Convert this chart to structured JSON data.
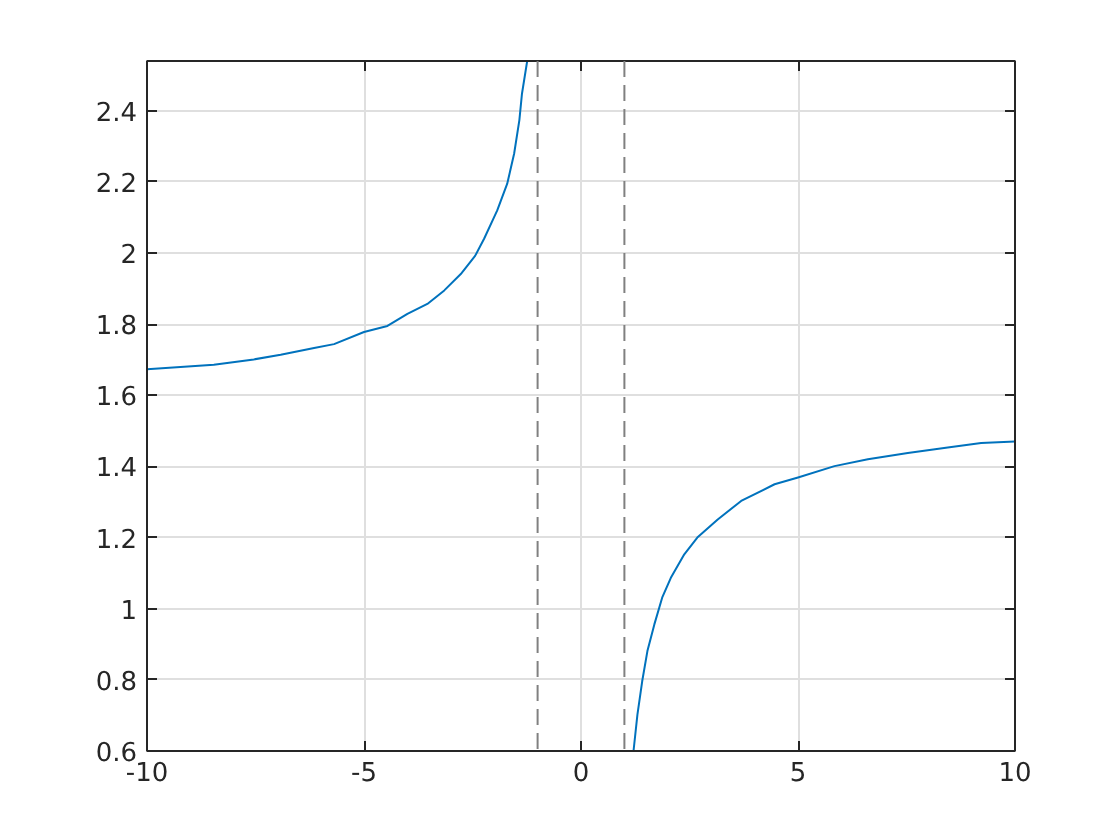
{
  "chart_data": {
    "type": "line",
    "series": [
      {
        "color": "#0072bd",
        "x": [
          -10,
          -8.46,
          -7.54,
          -6.92,
          -6.15,
          -5.69,
          -5,
          -4.46,
          -4,
          -3.54,
          -3.15,
          -2.77,
          -2.44,
          -2.23,
          -1.93,
          -1.7,
          -1.54,
          -1.42,
          -1.36,
          -1.24
        ],
        "values": [
          1.673,
          1.686,
          1.701,
          1.714,
          1.733,
          1.744,
          1.778,
          1.795,
          1.829,
          1.857,
          1.895,
          1.941,
          1.992,
          2.041,
          2.12,
          2.195,
          2.28,
          2.374,
          2.448,
          2.54
        ]
      },
      {
        "color": "#0072bd",
        "x": [
          1.21,
          1.3,
          1.41,
          1.53,
          1.69,
          1.87,
          2.07,
          2.38,
          2.68,
          3.15,
          3.69,
          4.46,
          5,
          5.84,
          6.61,
          7.53,
          8.45,
          9.22,
          10
        ],
        "values": [
          0.6,
          0.702,
          0.796,
          0.881,
          0.956,
          1.031,
          1.087,
          1.153,
          1.2,
          1.251,
          1.303,
          1.35,
          1.369,
          1.401,
          1.42,
          1.438,
          1.453,
          1.466,
          1.47
        ]
      }
    ],
    "xlim": [
      -10,
      10
    ],
    "xticks": [
      -10,
      -5,
      0,
      5,
      10
    ],
    "ylim": [
      0.6,
      2.54
    ],
    "yticks": [
      0.6,
      0.8,
      1,
      1.2,
      1.4,
      1.6,
      1.8,
      2,
      2.2,
      2.4
    ],
    "ref_lines": [
      {
        "axis": "x",
        "value": -1,
        "color": "#808080",
        "line_style": "dashed"
      },
      {
        "axis": "x",
        "value": 1,
        "color": "#808080",
        "line_style": "dashed"
      }
    ],
    "grid": true
  }
}
